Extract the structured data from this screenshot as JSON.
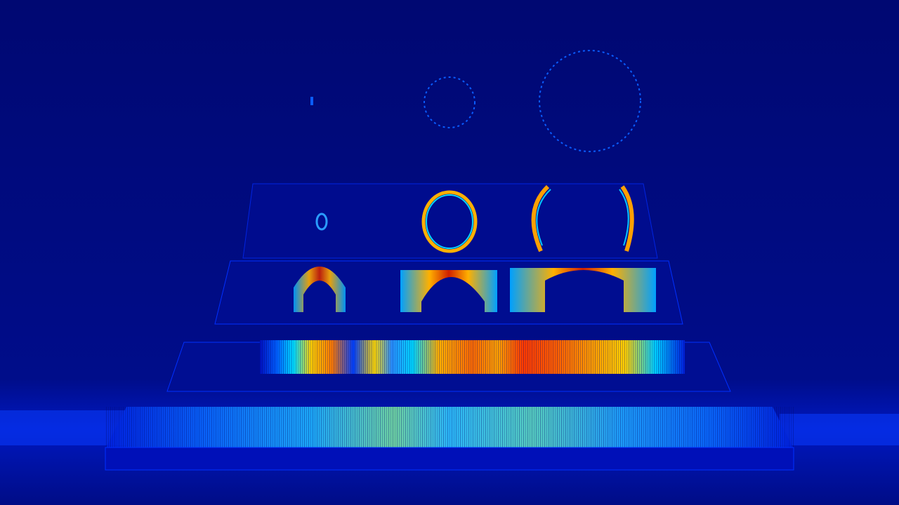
{
  "image": {
    "kind": "false-color thermal / intensity map",
    "colormap": "jet",
    "colors": {
      "background": "#000a6e",
      "background_light": "#0016a8",
      "cold": "#0000b0",
      "cool": "#0a4cff",
      "mid": "#00e6ff",
      "warm": "#ffe600",
      "hot": "#ff5a00",
      "hottest": "#d00000"
    }
  }
}
